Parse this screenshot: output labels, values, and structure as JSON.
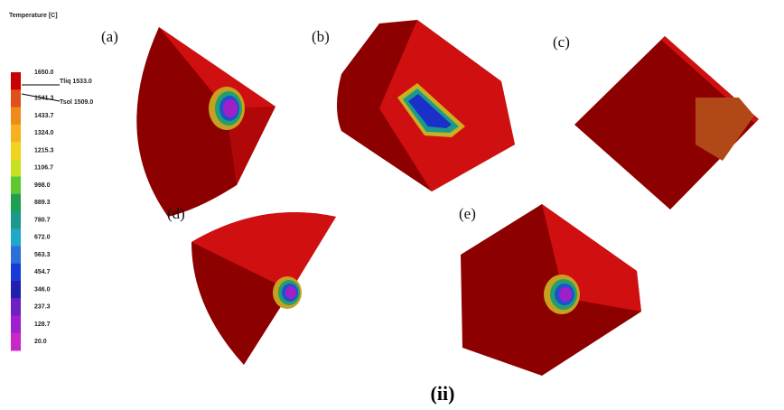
{
  "legend": {
    "title": "Temperature [C]",
    "labels": [
      "1650.0",
      "1541.3",
      "1433.7",
      "1324.0",
      "1215.3",
      "1106.7",
      "998.0",
      "889.3",
      "780.7",
      "672.0",
      "563.3",
      "454.7",
      "346.0",
      "237.3",
      "128.7",
      "20.0"
    ],
    "colors": [
      "#c80000",
      "#e0501a",
      "#f08a1a",
      "#f6b020",
      "#f2d21c",
      "#c8e020",
      "#5ec832",
      "#1ea050",
      "#1a9a8a",
      "#20a8c8",
      "#2a70d8",
      "#1a3ad8",
      "#2020b0",
      "#7020c0",
      "#a020d0",
      "#c828c8"
    ],
    "liquidus": "Tliq 1533.0",
    "solidus": "Tsol 1509.0"
  },
  "panels": [
    "(a)",
    "(b)",
    "(c)",
    "(d)",
    "(e)"
  ],
  "caption": "(ii)"
}
